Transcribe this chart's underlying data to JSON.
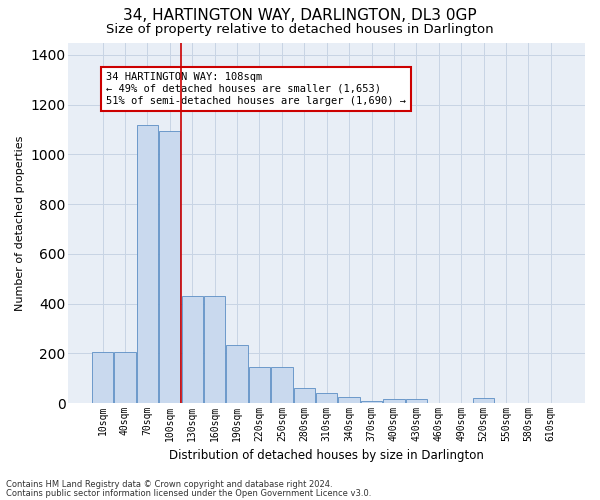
{
  "title": "34, HARTINGTON WAY, DARLINGTON, DL3 0GP",
  "subtitle": "Size of property relative to detached houses in Darlington",
  "xlabel": "Distribution of detached houses by size in Darlington",
  "ylabel": "Number of detached properties",
  "footnote1": "Contains HM Land Registry data © Crown copyright and database right 2024.",
  "footnote2": "Contains public sector information licensed under the Open Government Licence v3.0.",
  "bar_color": "#c9d9ee",
  "bar_edge_color": "#5b8ec4",
  "grid_color": "#c8d4e4",
  "background_color": "#e8eef6",
  "annotation_box_color": "#cc0000",
  "vline_color": "#cc0000",
  "categories": [
    "10sqm",
    "40sqm",
    "70sqm",
    "100sqm",
    "130sqm",
    "160sqm",
    "190sqm",
    "220sqm",
    "250sqm",
    "280sqm",
    "310sqm",
    "340sqm",
    "370sqm",
    "400sqm",
    "430sqm",
    "460sqm",
    "490sqm",
    "520sqm",
    "550sqm",
    "580sqm",
    "610sqm"
  ],
  "bar_values": [
    207,
    207,
    1120,
    1095,
    430,
    430,
    232,
    147,
    147,
    60,
    40,
    25,
    10,
    15,
    15,
    0,
    0,
    20,
    0,
    0,
    0
  ],
  "ylim": [
    0,
    1450
  ],
  "yticks": [
    0,
    200,
    400,
    600,
    800,
    1000,
    1200,
    1400
  ],
  "vline_x": 3.5,
  "annotation_text": "34 HARTINGTON WAY: 108sqm\n← 49% of detached houses are smaller (1,653)\n51% of semi-detached houses are larger (1,690) →",
  "title_fontsize": 11,
  "subtitle_fontsize": 9.5,
  "ylabel_fontsize": 8,
  "xlabel_fontsize": 8.5,
  "tick_fontsize": 7,
  "annot_fontsize": 7.5,
  "footnote_fontsize": 6
}
